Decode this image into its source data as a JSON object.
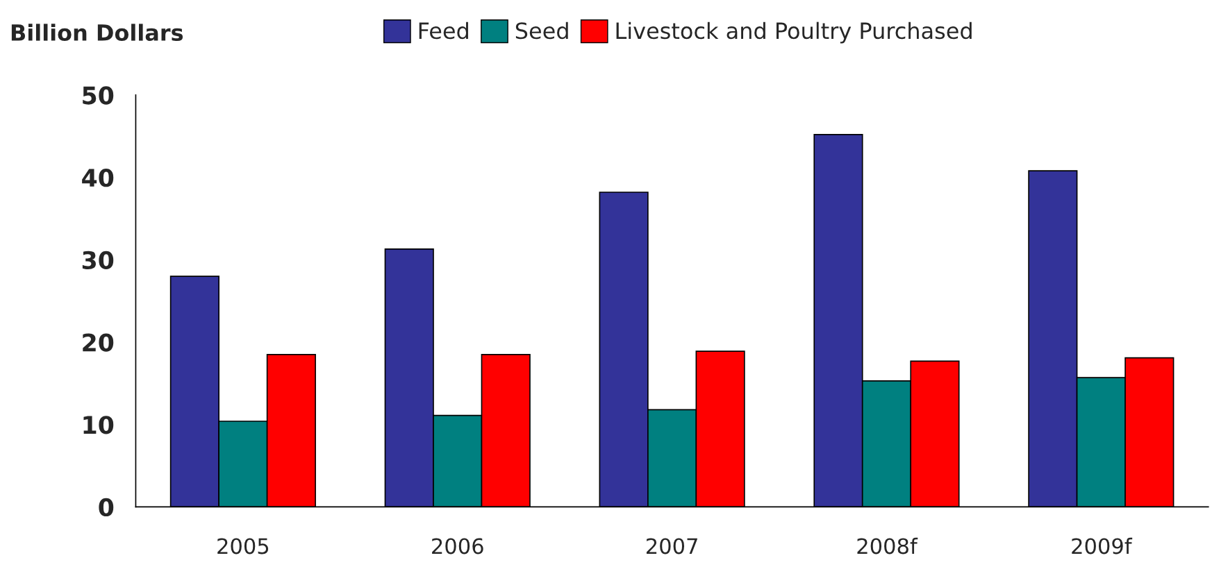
{
  "chart_data": {
    "type": "bar",
    "ylabel": "Billion Dollars",
    "categories": [
      "2005",
      "2006",
      "2007",
      "2008f",
      "2009f"
    ],
    "series": [
      {
        "name": "Feed",
        "color": "#333399",
        "values": [
          28.0,
          31.3,
          38.2,
          45.2,
          40.8
        ]
      },
      {
        "name": "Seed",
        "color": "#008080",
        "values": [
          10.4,
          11.1,
          11.8,
          15.3,
          15.7
        ]
      },
      {
        "name": "Livestock and Poultry Purchased",
        "color": "#ff0000",
        "values": [
          18.5,
          18.5,
          18.9,
          17.7,
          18.1
        ]
      }
    ],
    "ylim": [
      0,
      50
    ],
    "yticks": [
      0,
      10,
      20,
      30,
      40,
      50
    ],
    "grid": false,
    "legend": "top"
  }
}
